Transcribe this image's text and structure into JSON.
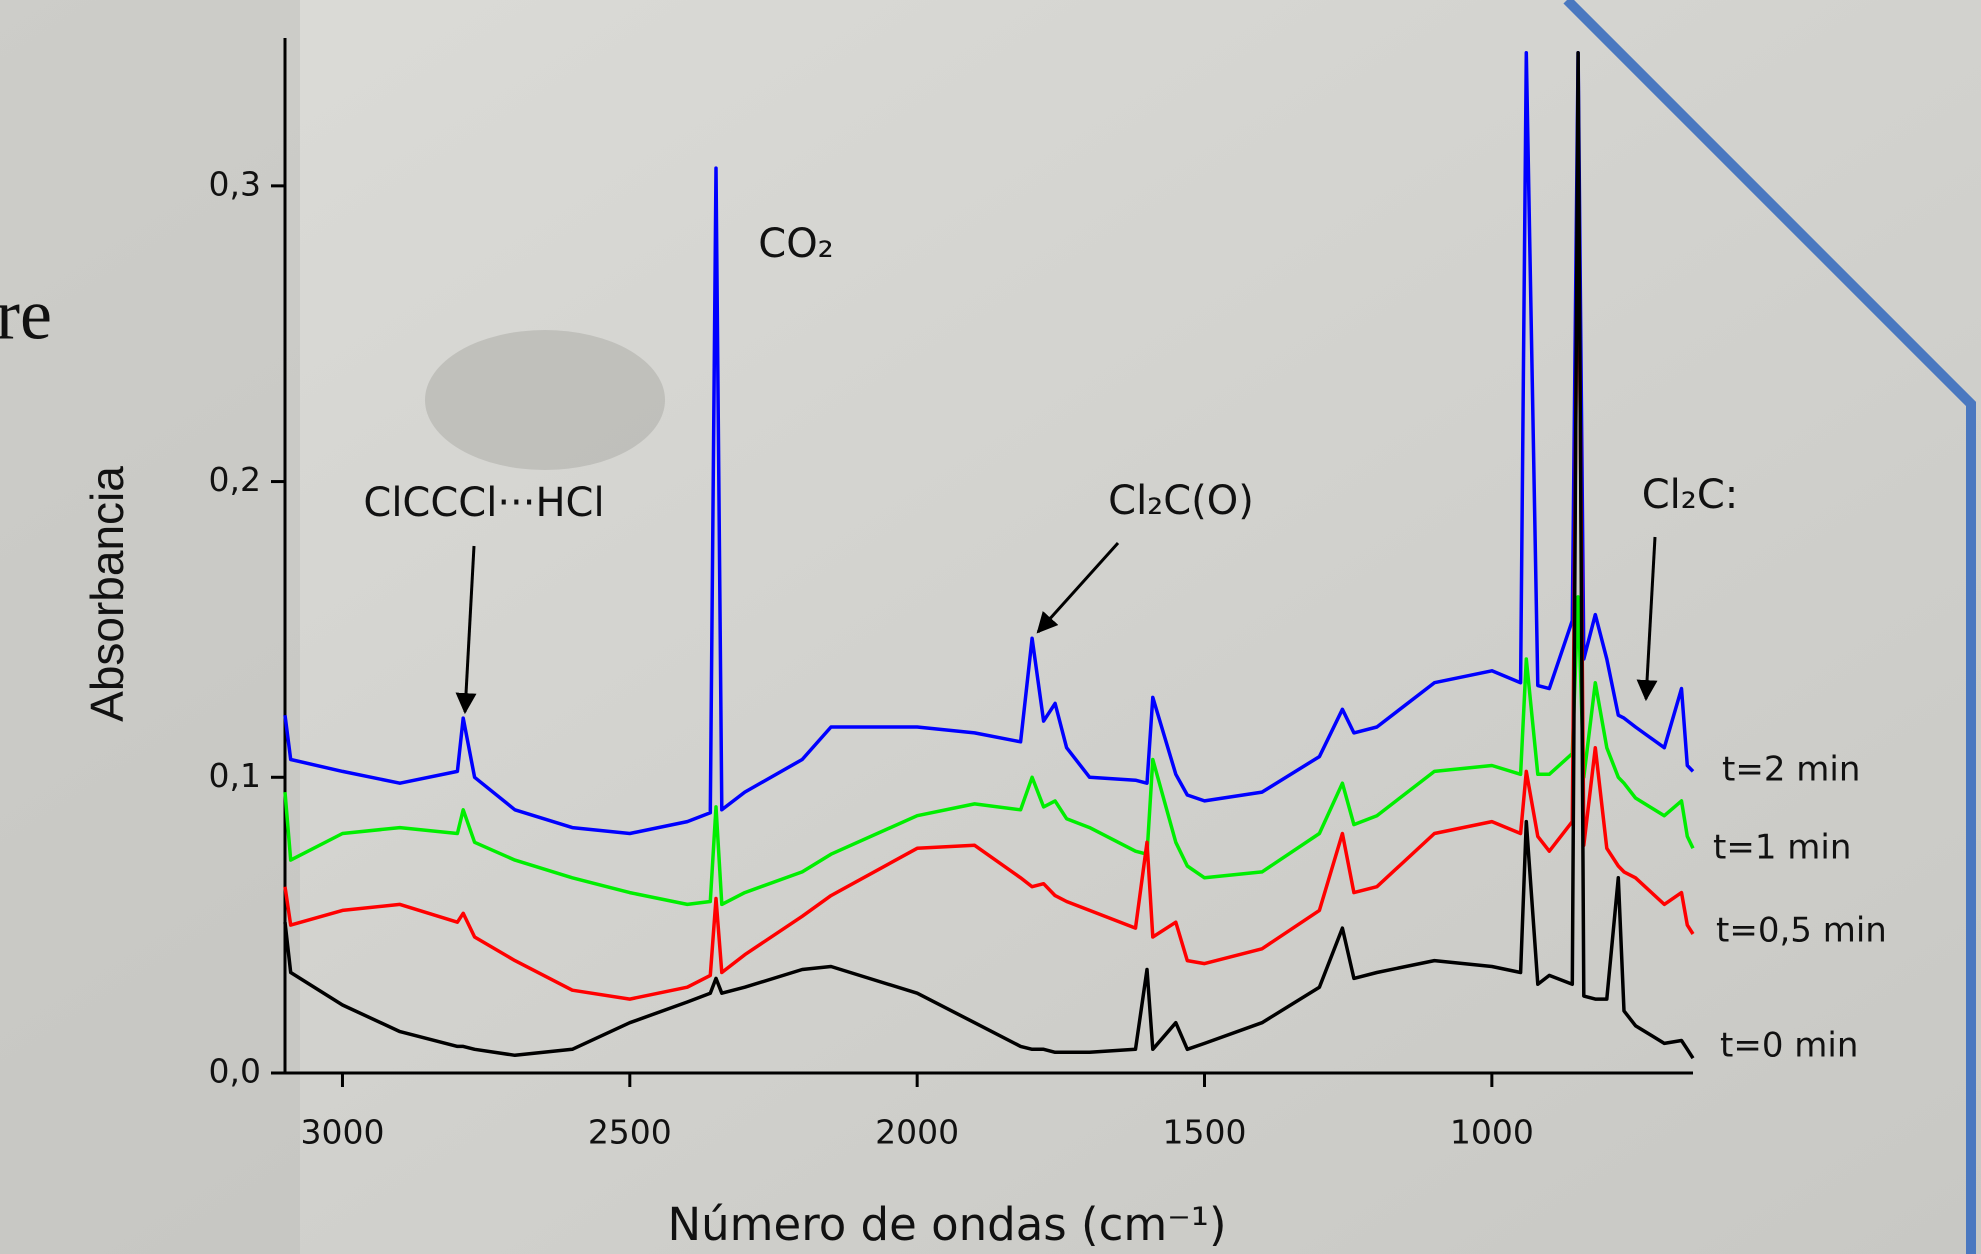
{
  "background_text": "re",
  "chart_data": {
    "type": "line",
    "x_label": "Número de ondas (cm⁻¹)",
    "y_label": "Absorbancia",
    "xlim": [
      3100,
      650
    ],
    "ylim": [
      0,
      0.35
    ],
    "xticks": [
      3000,
      2500,
      2000,
      1500,
      1000
    ],
    "yticks": [
      {
        "value": 0,
        "label": "0,0"
      },
      {
        "value": 0.1,
        "label": "0,1"
      },
      {
        "value": 0.2,
        "label": "0,2"
      },
      {
        "value": 0.3,
        "label": "0,3"
      }
    ],
    "annotations": [
      {
        "text": "ClCCCl···HCl"
      },
      {
        "text": "CO₂"
      },
      {
        "text": "Cl₂C(O)"
      },
      {
        "text": "Cl₂C:"
      }
    ],
    "x": [
      3100,
      3090,
      3000,
      2900,
      2800,
      2790,
      2770,
      2700,
      2600,
      2500,
      2400,
      2360,
      2350,
      2340,
      2300,
      2200,
      2150,
      2000,
      1900,
      1820,
      1800,
      1780,
      1760,
      1740,
      1700,
      1620,
      1600,
      1590,
      1550,
      1530,
      1500,
      1400,
      1300,
      1260,
      1240,
      1200,
      1100,
      1000,
      950,
      940,
      920,
      900,
      860,
      850,
      840,
      820,
      800,
      780,
      770,
      750,
      700,
      670,
      660,
      650
    ],
    "series": [
      {
        "name": "t=2 min",
        "color": "#0000ff",
        "values": [
          0.121,
          0.106,
          0.102,
          0.098,
          0.102,
          0.12,
          0.1,
          0.089,
          0.083,
          0.081,
          0.085,
          0.088,
          0.306,
          0.089,
          0.095,
          0.106,
          0.117,
          0.117,
          0.115,
          0.112,
          0.147,
          0.119,
          0.125,
          0.11,
          0.1,
          0.099,
          0.098,
          0.127,
          0.101,
          0.094,
          0.092,
          0.095,
          0.107,
          0.123,
          0.115,
          0.117,
          0.132,
          0.136,
          0.132,
          0.345,
          0.131,
          0.13,
          0.153,
          0.345,
          0.14,
          0.155,
          0.14,
          0.121,
          0.12,
          0.117,
          0.11,
          0.13,
          0.104,
          0.102
        ]
      },
      {
        "name": "t=1 min",
        "color": "#00ee00",
        "values": [
          0.095,
          0.072,
          0.081,
          0.083,
          0.081,
          0.089,
          0.078,
          0.072,
          0.066,
          0.061,
          0.057,
          0.058,
          0.09,
          0.057,
          0.061,
          0.068,
          0.074,
          0.087,
          0.091,
          0.089,
          0.1,
          0.09,
          0.092,
          0.086,
          0.083,
          0.075,
          0.074,
          0.106,
          0.078,
          0.07,
          0.066,
          0.068,
          0.081,
          0.098,
          0.084,
          0.087,
          0.102,
          0.104,
          0.101,
          0.14,
          0.101,
          0.101,
          0.108,
          0.161,
          0.1,
          0.132,
          0.11,
          0.1,
          0.098,
          0.093,
          0.087,
          0.092,
          0.08,
          0.076
        ]
      },
      {
        "name": "t=0,5 min",
        "color": "#ff0000",
        "values": [
          0.063,
          0.05,
          0.055,
          0.057,
          0.051,
          0.054,
          0.046,
          0.038,
          0.028,
          0.025,
          0.029,
          0.033,
          0.059,
          0.034,
          0.04,
          0.053,
          0.06,
          0.076,
          0.077,
          0.066,
          0.063,
          0.064,
          0.06,
          0.058,
          0.055,
          0.049,
          0.078,
          0.046,
          0.051,
          0.038,
          0.037,
          0.042,
          0.055,
          0.081,
          0.061,
          0.063,
          0.081,
          0.085,
          0.081,
          0.102,
          0.08,
          0.075,
          0.085,
          0.311,
          0.077,
          0.11,
          0.076,
          0.07,
          0.068,
          0.066,
          0.057,
          0.061,
          0.05,
          0.047
        ]
      },
      {
        "name": "t=0 min",
        "color": "#000000",
        "values": [
          0.051,
          0.034,
          0.023,
          0.014,
          0.009,
          0.009,
          0.008,
          0.006,
          0.008,
          0.017,
          0.024,
          0.027,
          0.032,
          0.027,
          0.029,
          0.035,
          0.036,
          0.027,
          0.017,
          0.009,
          0.008,
          0.008,
          0.007,
          0.007,
          0.007,
          0.008,
          0.035,
          0.008,
          0.017,
          0.008,
          0.01,
          0.017,
          0.029,
          0.049,
          0.032,
          0.034,
          0.038,
          0.036,
          0.034,
          0.085,
          0.03,
          0.033,
          0.03,
          0.345,
          0.026,
          0.025,
          0.025,
          0.066,
          0.021,
          0.016,
          0.01,
          0.011,
          0.008,
          0.005
        ]
      }
    ]
  }
}
